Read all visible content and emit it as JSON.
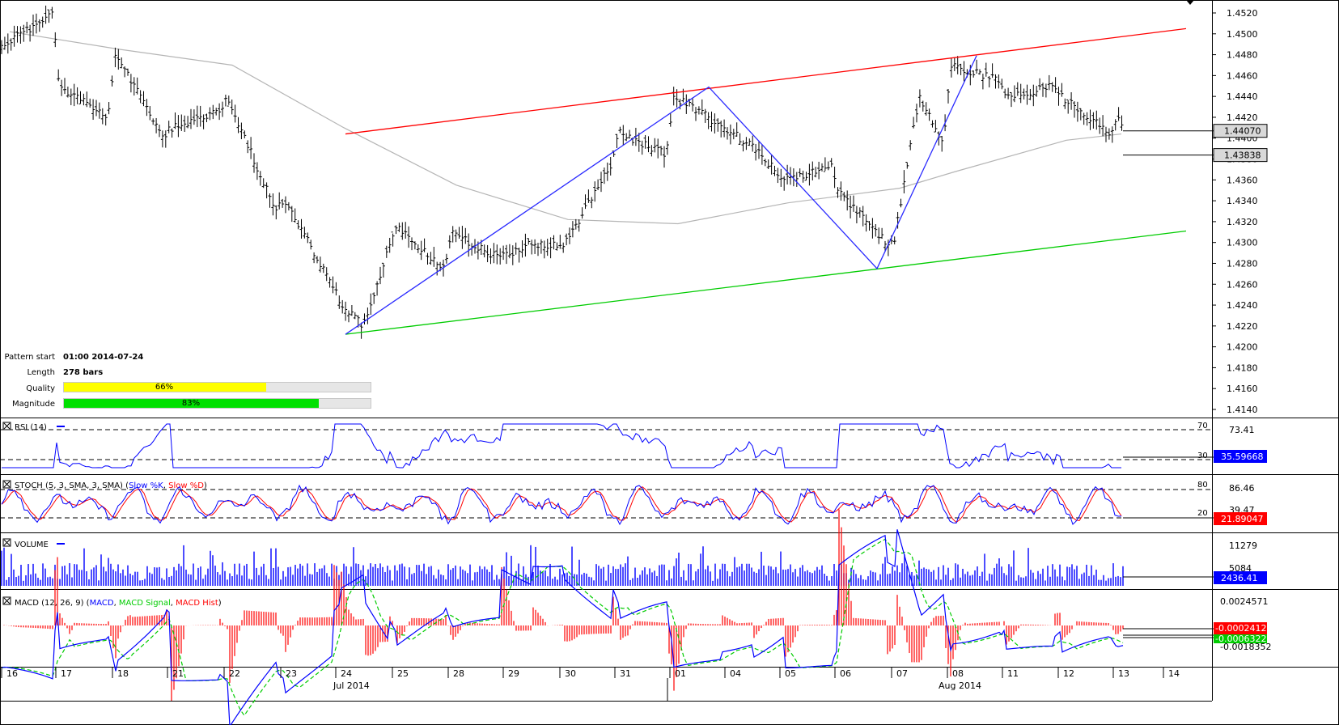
{
  "chart_data": {
    "type": "candlestick",
    "symbol_hint": "",
    "price_axis": {
      "ticks": [
        "1.4520",
        "1.4500",
        "1.4480",
        "1.4460",
        "1.4440",
        "1.4420",
        "1.4400",
        "1.4380",
        "1.4360",
        "1.4340",
        "1.4320",
        "1.4300",
        "1.4280",
        "1.4260",
        "1.4240",
        "1.4220",
        "1.4200",
        "1.4180",
        "1.4160",
        "1.4140"
      ],
      "range": [
        1.413,
        1.453
      ],
      "badges": [
        {
          "label": "1.44070",
          "value": 1.4407
        },
        {
          "label": "1.43838",
          "value": 1.43838
        }
      ]
    },
    "channel": {
      "upper": {
        "from": [
          "2014-07-24",
          1.4404
        ],
        "to": [
          "2014-08-13",
          1.4505
        ],
        "color": "#ff0000"
      },
      "lower": {
        "from": [
          "2014-07-24",
          1.4212
        ],
        "to": [
          "2014-08-13",
          1.4311
        ],
        "color": "#00cc00"
      }
    },
    "pattern_legs": [
      {
        "date": "2014-07-24",
        "price": 1.4212
      },
      {
        "date": "2014-08-01",
        "price": 1.4449
      },
      {
        "date": "2014-08-06",
        "price": 1.4275
      },
      {
        "date": "2014-08-08",
        "price": 1.4479
      }
    ],
    "price_path": [
      {
        "date": "2014-07-16",
        "price": 1.449
      },
      {
        "date": "2014-07-16",
        "price": 1.452
      },
      {
        "date": "2014-07-17",
        "price": 1.445
      },
      {
        "date": "2014-07-17",
        "price": 1.442
      },
      {
        "date": "2014-07-18",
        "price": 1.448
      },
      {
        "date": "2014-07-18",
        "price": 1.44
      },
      {
        "date": "2014-07-21",
        "price": 1.441
      },
      {
        "date": "2014-07-21",
        "price": 1.4425
      },
      {
        "date": "2014-07-22",
        "price": 1.444
      },
      {
        "date": "2014-07-22",
        "price": 1.433
      },
      {
        "date": "2014-07-23",
        "price": 1.434
      },
      {
        "date": "2014-07-23",
        "price": 1.426
      },
      {
        "date": "2014-07-24",
        "price": 1.4245
      },
      {
        "date": "2014-07-24",
        "price": 1.422
      },
      {
        "date": "2014-07-24",
        "price": 1.429
      },
      {
        "date": "2014-07-25",
        "price": 1.4315
      },
      {
        "date": "2014-07-25",
        "price": 1.4275
      },
      {
        "date": "2014-07-28",
        "price": 1.431
      },
      {
        "date": "2014-07-28",
        "price": 1.4285
      },
      {
        "date": "2014-07-29",
        "price": 1.43
      },
      {
        "date": "2014-07-30",
        "price": 1.4295
      },
      {
        "date": "2014-07-30",
        "price": 1.4375
      },
      {
        "date": "2014-07-31",
        "price": 1.4405
      },
      {
        "date": "2014-07-31",
        "price": 1.4385
      },
      {
        "date": "2014-08-01",
        "price": 1.444
      },
      {
        "date": "2014-08-01",
        "price": 1.4412
      },
      {
        "date": "2014-08-04",
        "price": 1.4392
      },
      {
        "date": "2014-08-05",
        "price": 1.436
      },
      {
        "date": "2014-08-05",
        "price": 1.4372
      },
      {
        "date": "2014-08-06",
        "price": 1.435
      },
      {
        "date": "2014-08-06",
        "price": 1.43
      },
      {
        "date": "2014-08-07",
        "price": 1.4305
      },
      {
        "date": "2014-08-07",
        "price": 1.444
      },
      {
        "date": "2014-08-07",
        "price": 1.4395
      },
      {
        "date": "2014-08-08",
        "price": 1.447
      },
      {
        "date": "2014-08-08",
        "price": 1.4455
      },
      {
        "date": "2014-08-11",
        "price": 1.444
      },
      {
        "date": "2014-08-11",
        "price": 1.445
      },
      {
        "date": "2014-08-12",
        "price": 1.444
      },
      {
        "date": "2014-08-12",
        "price": 1.4405
      },
      {
        "date": "2014-08-13",
        "price": 1.442
      },
      {
        "date": "2014-08-13",
        "price": 1.4384
      }
    ],
    "moving_average": [
      {
        "date": "2014-07-16",
        "price": 1.4502
      },
      {
        "date": "2014-07-18",
        "price": 1.4485
      },
      {
        "date": "2014-07-22",
        "price": 1.447
      },
      {
        "date": "2014-07-24",
        "price": 1.441
      },
      {
        "date": "2014-07-28",
        "price": 1.4355
      },
      {
        "date": "2014-07-30",
        "price": 1.4322
      },
      {
        "date": "2014-08-01",
        "price": 1.4318
      },
      {
        "date": "2014-08-05",
        "price": 1.4338
      },
      {
        "date": "2014-08-07",
        "price": 1.4352
      },
      {
        "date": "2014-08-08",
        "price": 1.4368
      },
      {
        "date": "2014-08-12",
        "price": 1.4398
      },
      {
        "date": "2014-08-13",
        "price": 1.4404
      }
    ],
    "x_axis": {
      "day_labels": [
        "16",
        "17",
        "18",
        "21",
        "22",
        "23",
        "24",
        "25",
        "28",
        "29",
        "30",
        "31",
        "01",
        "04",
        "05",
        "06",
        "07",
        "08",
        "11",
        "12",
        "13",
        "14"
      ],
      "month_labels": [
        "Jul 2014",
        "Aug 2014"
      ]
    },
    "rsi": {
      "title": "RSI (14)",
      "levels": [
        "70",
        "30"
      ],
      "axis_label": "73.41",
      "value_badge": "35.59668",
      "range": [
        15,
        85
      ]
    },
    "stoch": {
      "title_prefix": "STOCH (5, 3, SMA, 3, SMA)",
      "legend": [
        {
          "name": "Slow %K",
          "color": "#0000ff"
        },
        {
          "name": "Slow %D",
          "color": "#ff0000"
        }
      ],
      "levels": [
        "80",
        "20"
      ],
      "axis_labels": [
        "86.46",
        "39.47"
      ],
      "value_badge": "21.89047",
      "range": [
        0,
        100
      ]
    },
    "volume": {
      "title": "VOLUME",
      "axis_labels": [
        "11279",
        "5084"
      ],
      "value_badge": "2436.41"
    },
    "macd": {
      "title_prefix": "MACD (12, 26, 9)",
      "legend": [
        {
          "name": "MACD",
          "color": "#0000ff"
        },
        {
          "name": "MACD Signal",
          "color": "#00cc00"
        },
        {
          "name": "MACD Hist",
          "color": "#ff0000"
        }
      ],
      "axis_labels": [
        "0.0024571",
        "-0.0018352"
      ],
      "value_badges": [
        {
          "label": "-0.0002412",
          "color": "#ff0000"
        },
        {
          "label": "-0.0006322",
          "color": "#00cc00"
        }
      ]
    }
  },
  "pattern_info": {
    "start_label": "Pattern start",
    "start_value": "01:00 2014-07-24",
    "length_label": "Length",
    "length_value": "278 bars",
    "quality_label": "Quality",
    "quality_value": "66%",
    "quality_fraction": 0.66,
    "quality_color": "#ffff00",
    "magnitude_label": "Magnitude",
    "magnitude_value": "83%",
    "magnitude_fraction": 0.83,
    "magnitude_color": "#00e000"
  }
}
